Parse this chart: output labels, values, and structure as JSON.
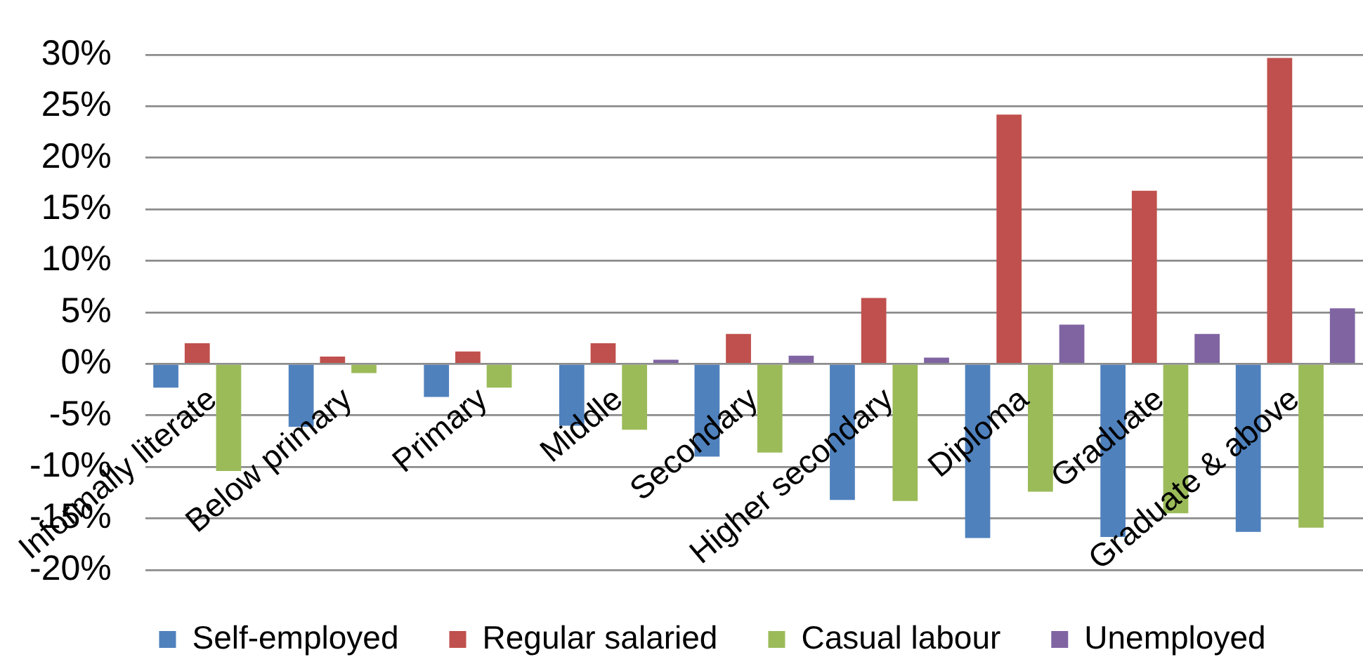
{
  "chart_data": {
    "type": "bar",
    "categories": [
      "Informally literate",
      "Below primary",
      "Primary",
      "Middle",
      "Secondary",
      "Higher secondary",
      "Diploma",
      "Graduate",
      "Graduate & above"
    ],
    "series": [
      {
        "name": "Self-employed",
        "color": "#4f81bd",
        "values": [
          -2.3,
          -6.1,
          -3.2,
          -6.0,
          -9.0,
          -13.2,
          -16.9,
          -16.8,
          -16.3
        ]
      },
      {
        "name": "Regular salaried",
        "color": "#c0504d",
        "values": [
          2.0,
          0.7,
          1.2,
          2.0,
          2.9,
          6.4,
          24.2,
          16.8,
          29.7
        ]
      },
      {
        "name": "Casual labour",
        "color": "#9bbb59",
        "values": [
          -10.4,
          -0.9,
          -2.3,
          -6.4,
          -8.6,
          -13.3,
          -12.4,
          -14.5,
          -15.9
        ]
      },
      {
        "name": "Unemployed",
        "color": "#8064a2",
        "values": [
          null,
          null,
          null,
          0.4,
          0.8,
          0.6,
          3.8,
          2.9,
          5.4
        ]
      }
    ],
    "ylim": [
      -20,
      30
    ],
    "yticks": [
      {
        "value": -20,
        "label": "-20%"
      },
      {
        "value": -15,
        "label": "-15%"
      },
      {
        "value": -10,
        "label": "-10%"
      },
      {
        "value": -5,
        "label": "-5%"
      },
      {
        "value": 0,
        "label": "0%"
      },
      {
        "value": 5,
        "label": "5%"
      },
      {
        "value": 10,
        "label": "10%"
      },
      {
        "value": 15,
        "label": "15%"
      },
      {
        "value": 20,
        "label": "20%"
      },
      {
        "value": 25,
        "label": "25%"
      },
      {
        "value": 30,
        "label": "30%"
      }
    ],
    "grid": "y",
    "legend": "bottom"
  }
}
